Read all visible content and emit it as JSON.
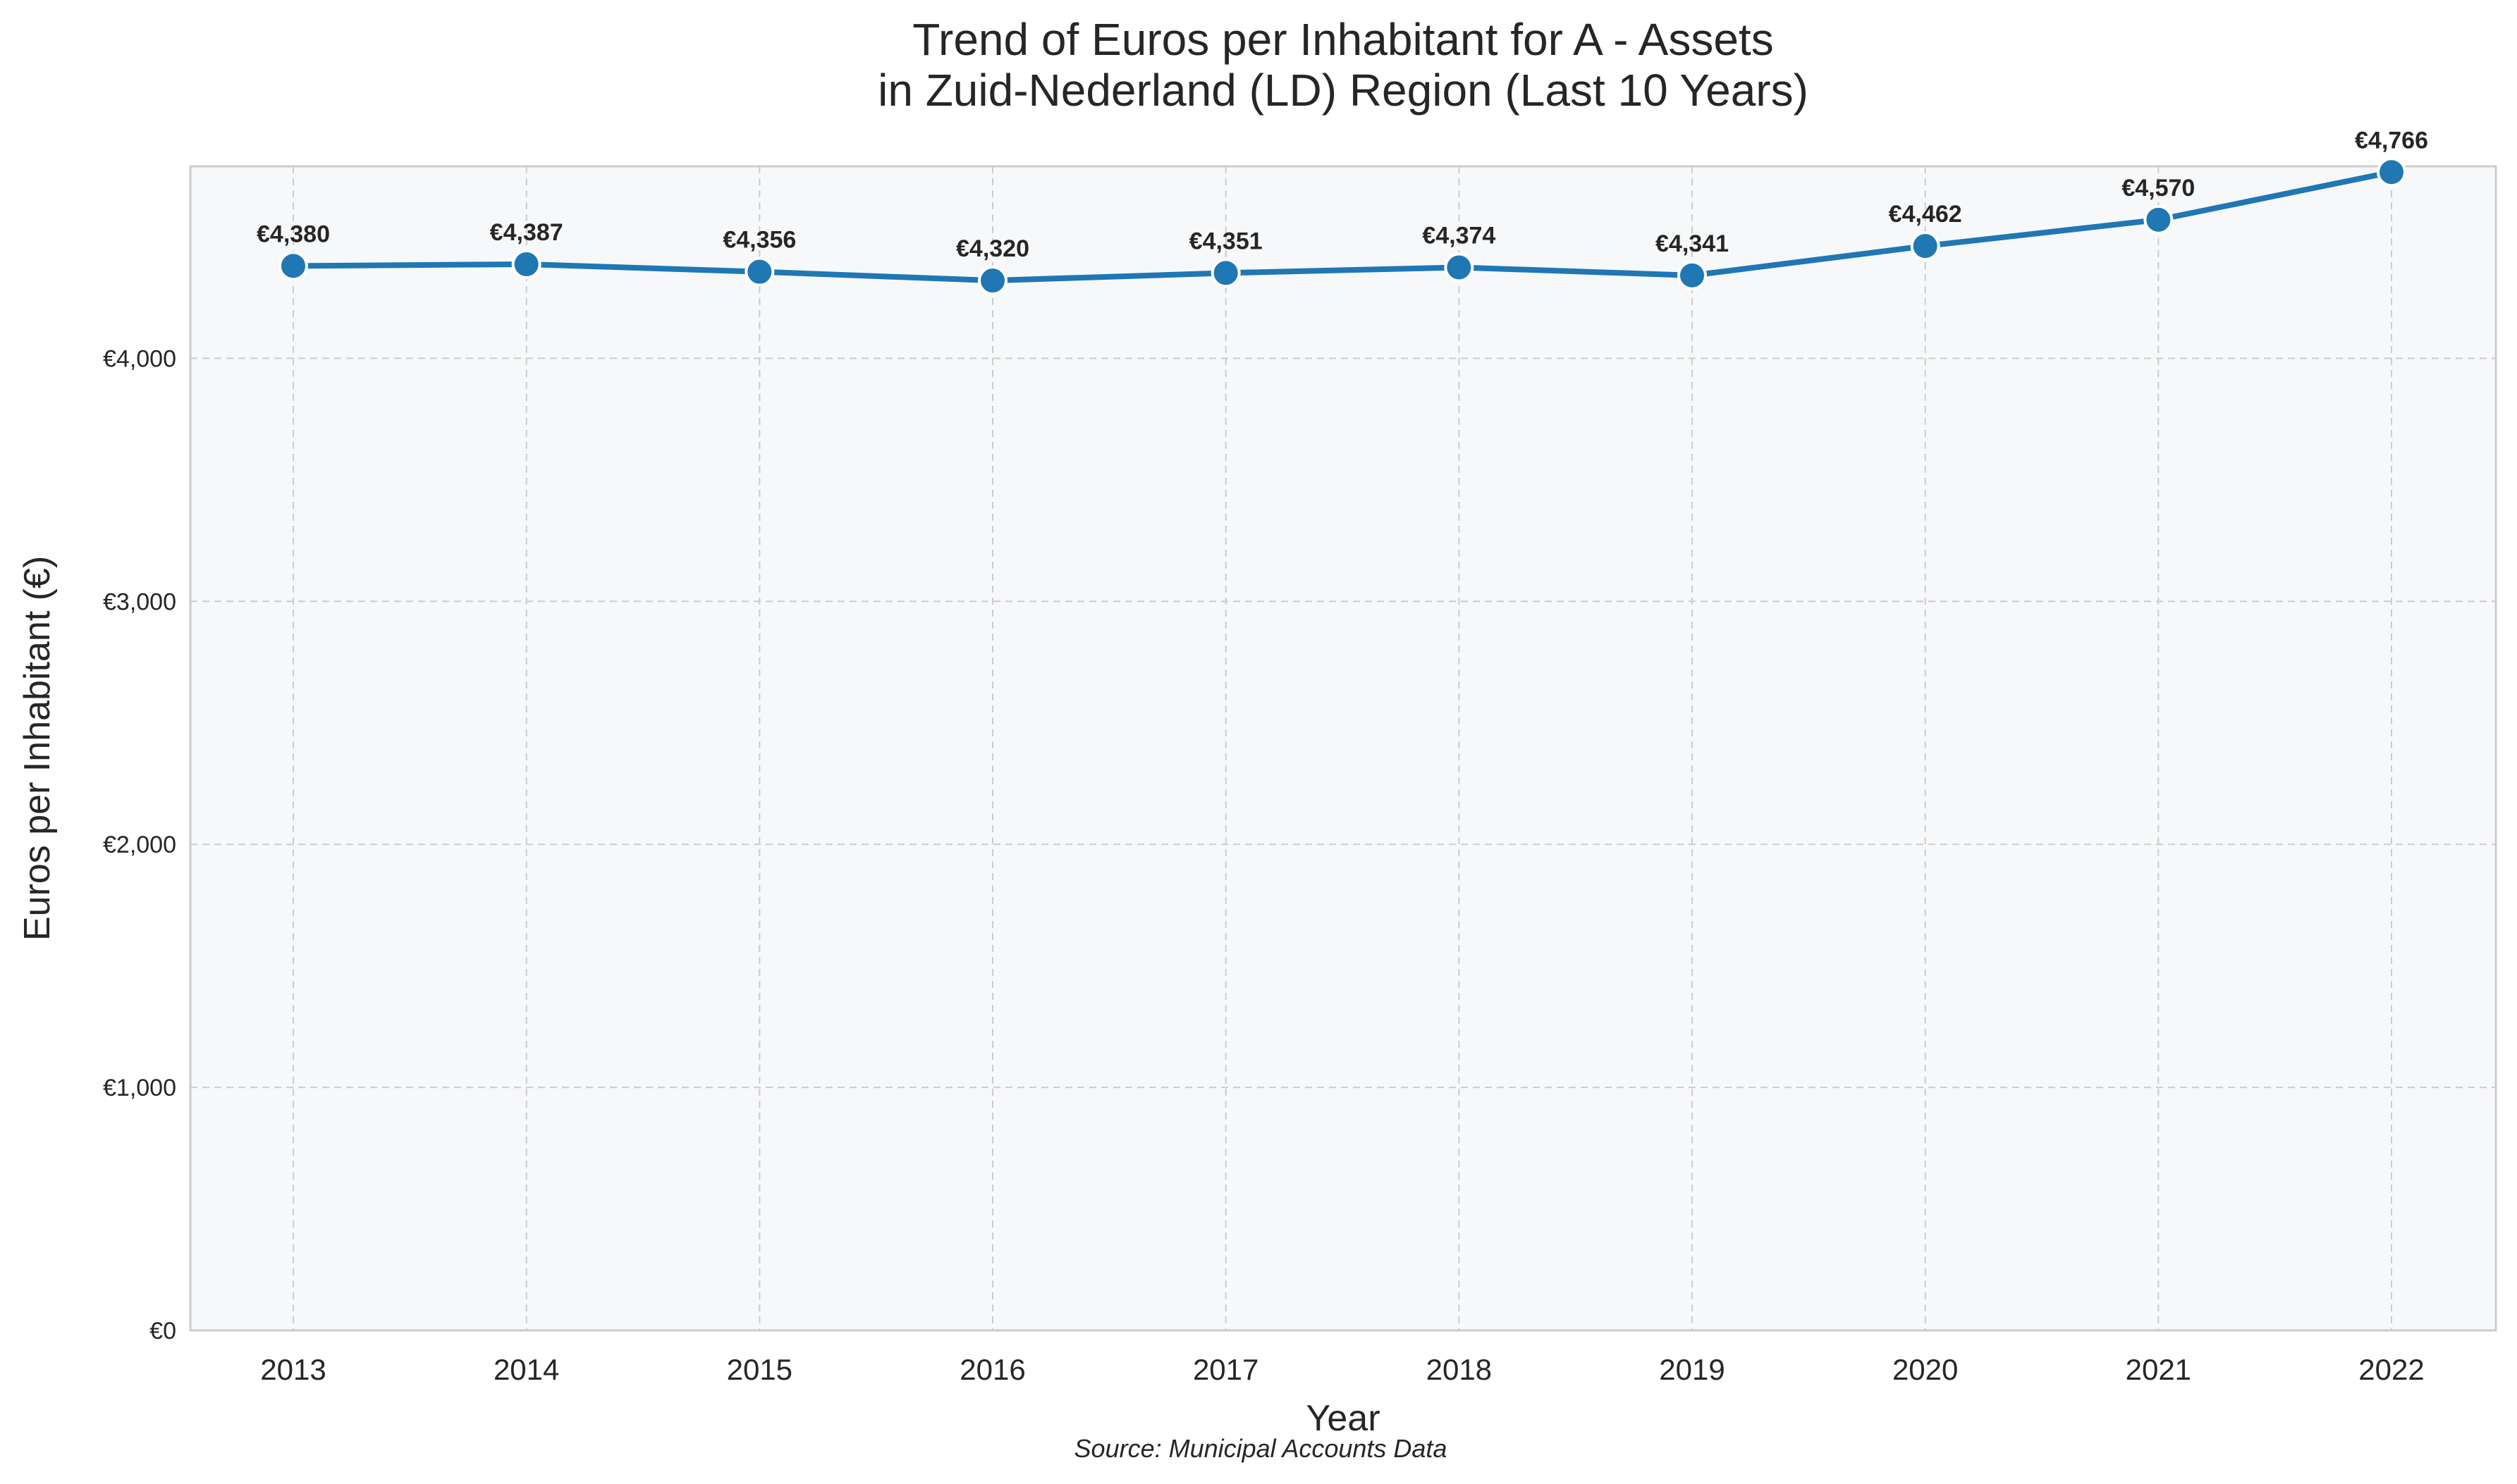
{
  "chart_data": {
    "type": "line",
    "title_lines": [
      "Trend of Euros per Inhabitant for A - Assets",
      "in Zuid-Nederland (LD) Region (Last 10 Years)"
    ],
    "xlabel": "Year",
    "ylabel": "Euros per Inhabitant (€)",
    "source": "Source: Municipal Accounts Data",
    "x": [
      "2013",
      "2014",
      "2015",
      "2016",
      "2017",
      "2018",
      "2019",
      "2020",
      "2021",
      "2022"
    ],
    "series": [
      {
        "name": "A - Assets",
        "values": [
          4380,
          4387,
          4356,
          4320,
          4351,
          4374,
          4341,
          4462,
          4570,
          4766
        ],
        "labels": [
          "€4,380",
          "€4,387",
          "€4,356",
          "€4,320",
          "€4,351",
          "€4,374",
          "€4,341",
          "€4,462",
          "€4,570",
          "€4,766"
        ]
      }
    ],
    "y_ticks": [
      0,
      1000,
      2000,
      3000,
      4000
    ],
    "y_tick_labels": [
      "€0",
      "€1,000",
      "€2,000",
      "€3,000",
      "€4,000"
    ],
    "ylim": [
      0,
      4790
    ],
    "grid": true,
    "colors": {
      "line": "#1f77b4",
      "plot_background": "#f7f8fa",
      "grid": "#cccccc",
      "spine": "#cccccc"
    }
  }
}
